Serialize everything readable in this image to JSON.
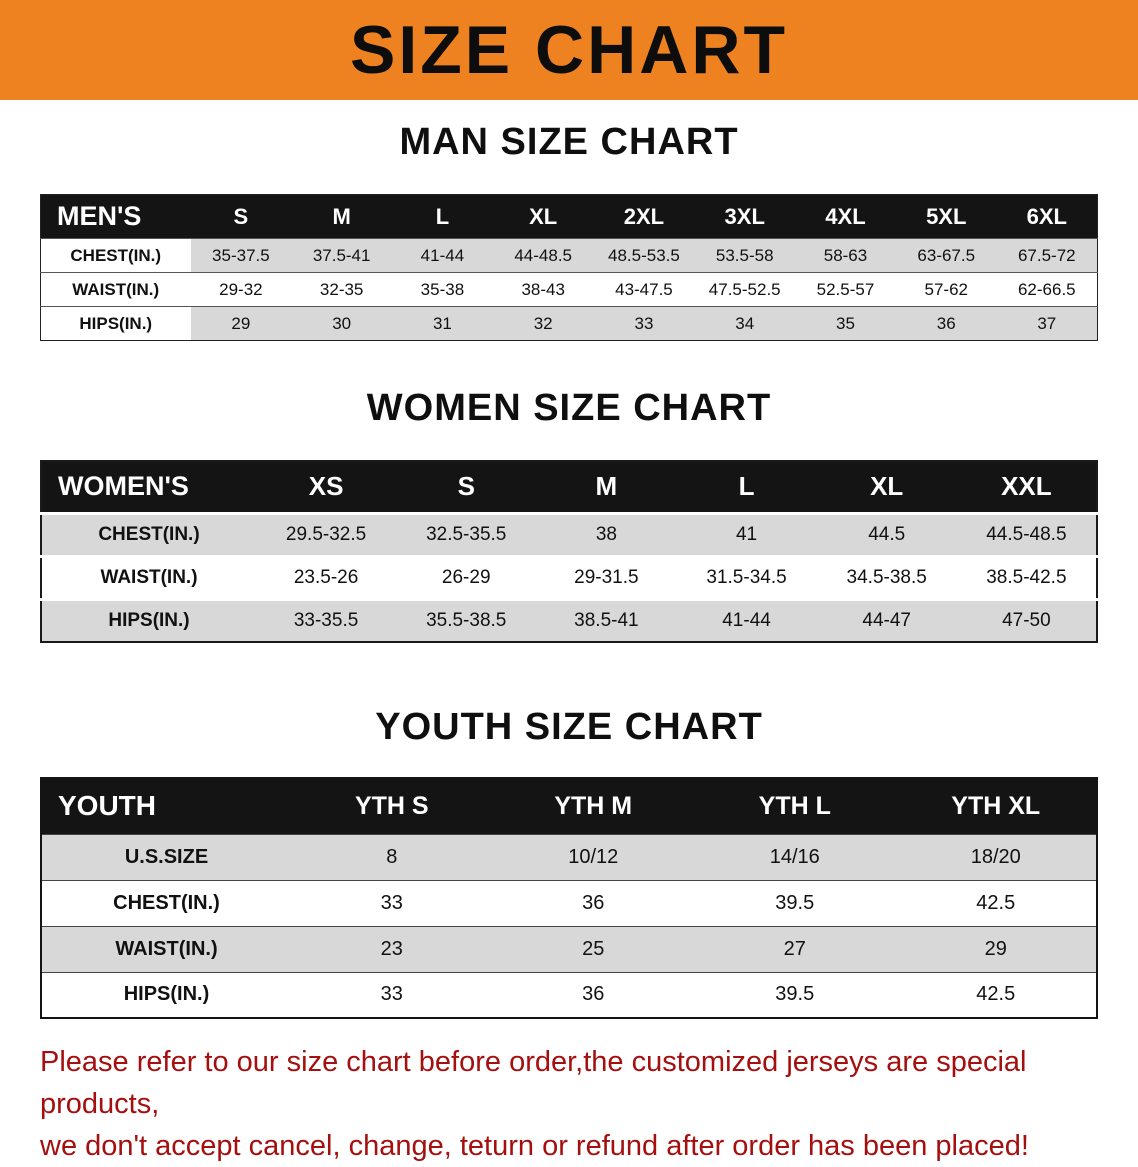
{
  "banner": {
    "title": "SIZE CHART"
  },
  "men": {
    "heading": "MAN SIZE CHART",
    "header": [
      "MEN'S",
      "S",
      "M",
      "L",
      "XL",
      "2XL",
      "3XL",
      "4XL",
      "5XL",
      "6XL"
    ],
    "rows": [
      {
        "label": "CHEST(IN.)",
        "values": [
          "35-37.5",
          "37.5-41",
          "41-44",
          "44-48.5",
          "48.5-53.5",
          "53.5-58",
          "58-63",
          "63-67.5",
          "67.5-72"
        ]
      },
      {
        "label": "WAIST(IN.)",
        "values": [
          "29-32",
          "32-35",
          "35-38",
          "38-43",
          "43-47.5",
          "47.5-52.5",
          "52.5-57",
          "57-62",
          "62-66.5"
        ]
      },
      {
        "label": "HIPS(IN.)",
        "values": [
          "29",
          "30",
          "31",
          "32",
          "33",
          "34",
          "35",
          "36",
          "37"
        ]
      }
    ]
  },
  "women": {
    "heading": "WOMEN SIZE CHART",
    "header": [
      "WOMEN'S",
      "XS",
      "S",
      "M",
      "L",
      "XL",
      "XXL"
    ],
    "rows": [
      {
        "label": "CHEST(IN.)",
        "values": [
          "29.5-32.5",
          "32.5-35.5",
          "38",
          "41",
          "44.5",
          "44.5-48.5"
        ]
      },
      {
        "label": "WAIST(IN.)",
        "values": [
          "23.5-26",
          "26-29",
          "29-31.5",
          "31.5-34.5",
          "34.5-38.5",
          "38.5-42.5"
        ]
      },
      {
        "label": "HIPS(IN.)",
        "values": [
          "33-35.5",
          "35.5-38.5",
          "38.5-41",
          "41-44",
          "44-47",
          "47-50"
        ]
      }
    ]
  },
  "youth": {
    "heading": "YOUTH SIZE CHART",
    "header": [
      "YOUTH",
      "YTH S",
      "YTH M",
      "YTH L",
      "YTH XL"
    ],
    "rows": [
      {
        "label": "U.S.SIZE",
        "values": [
          "8",
          "10/12",
          "14/16",
          "18/20"
        ]
      },
      {
        "label": "CHEST(IN.)",
        "values": [
          "33",
          "36",
          "39.5",
          "42.5"
        ]
      },
      {
        "label": "WAIST(IN.)",
        "values": [
          "23",
          "25",
          "27",
          "29"
        ]
      },
      {
        "label": "HIPS(IN.)",
        "values": [
          "33",
          "36",
          "39.5",
          "42.5"
        ]
      }
    ]
  },
  "footer": {
    "line1": "Please refer to our size chart before order,the customized jerseys are special products,",
    "line2": "we don't accept cancel, change, teturn or refund after order has been placed!"
  },
  "colors": {
    "banner_bg": "#EF8220",
    "table_header_bg": "#141414",
    "row_stripe": "#D8D8D8",
    "disclaimer_text": "#A50F0F"
  }
}
